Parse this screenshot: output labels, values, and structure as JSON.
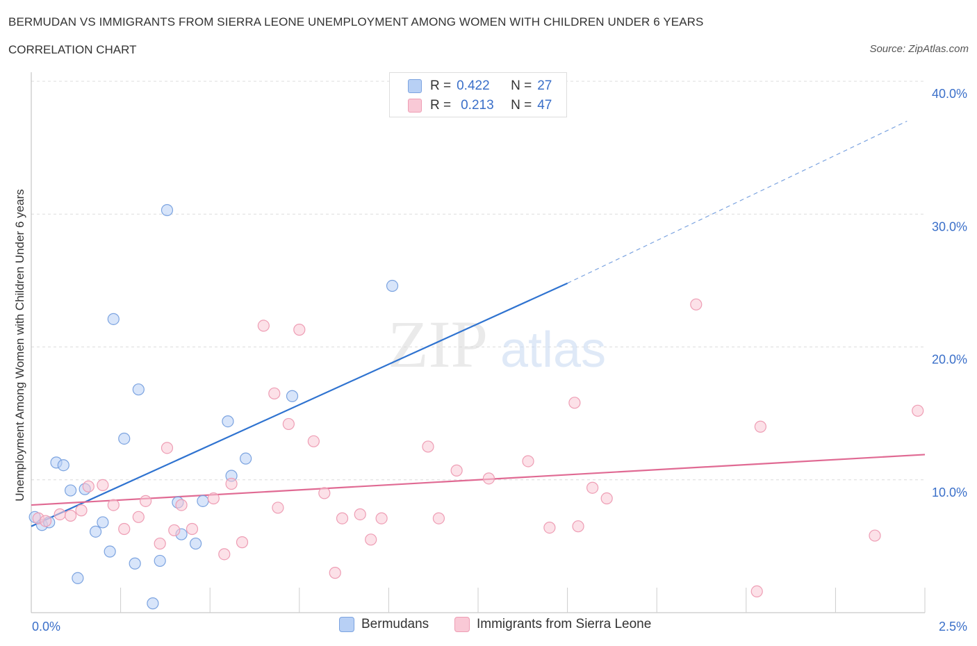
{
  "header": {
    "title": "BERMUDAN VS IMMIGRANTS FROM SIERRA LEONE UNEMPLOYMENT AMONG WOMEN WITH CHILDREN UNDER 6 YEARS",
    "subtitle": "CORRELATION CHART",
    "source": "Source: ZipAtlas.com"
  },
  "legend_top": {
    "rows": [
      {
        "r_label": "R =",
        "r_value": "0.422",
        "n_label": "N =",
        "n_value": "27",
        "color": "#b8d0f5",
        "stroke": "#7ba3e0"
      },
      {
        "r_label": "R =",
        "r_value": "0.213",
        "n_label": "N =",
        "n_value": "47",
        "color": "#f9c9d6",
        "stroke": "#ee9db4"
      }
    ]
  },
  "watermark": {
    "zip": "ZIP",
    "atlas": "atlas"
  },
  "chart_data": {
    "type": "scatter",
    "title": "BERMUDAN VS IMMIGRANTS FROM SIERRA LEONE UNEMPLOYMENT AMONG WOMEN WITH CHILDREN UNDER 6 YEARS",
    "ylabel": "Unemployment Among Women with Children Under 6 years",
    "xlabel": "",
    "xlim": [
      0.0,
      2.5
    ],
    "ylim": [
      0,
      40
    ],
    "x_tick_labels": [
      "0.0%",
      "2.5%"
    ],
    "y_tick_labels": [
      "10.0%",
      "20.0%",
      "30.0%",
      "40.0%"
    ],
    "y_ticks": [
      10,
      20,
      30,
      40
    ],
    "grid": true,
    "legend_position": "bottom",
    "series": [
      {
        "name": "Bermudans",
        "color": "#b8d0f5",
        "stroke": "#7ba3e0",
        "line_color": "#2f73d0",
        "trend": {
          "x0": 0.0,
          "y0": 6.5,
          "x1": 1.5,
          "y1": 24.8,
          "x_dash_end": 2.45,
          "y_dash_end": 37.0
        },
        "points": [
          [
            0.01,
            7.2
          ],
          [
            0.03,
            6.6
          ],
          [
            0.05,
            6.8
          ],
          [
            0.07,
            11.3
          ],
          [
            0.09,
            11.1
          ],
          [
            0.11,
            9.2
          ],
          [
            0.13,
            2.6
          ],
          [
            0.15,
            9.3
          ],
          [
            0.18,
            6.1
          ],
          [
            0.2,
            6.8
          ],
          [
            0.22,
            4.6
          ],
          [
            0.23,
            22.1
          ],
          [
            0.26,
            13.1
          ],
          [
            0.29,
            3.7
          ],
          [
            0.3,
            16.8
          ],
          [
            0.34,
            0.7
          ],
          [
            0.36,
            3.9
          ],
          [
            0.38,
            30.3
          ],
          [
            0.41,
            8.3
          ],
          [
            0.42,
            5.9
          ],
          [
            0.46,
            5.2
          ],
          [
            0.48,
            8.4
          ],
          [
            0.55,
            14.4
          ],
          [
            0.56,
            10.3
          ],
          [
            0.6,
            11.6
          ],
          [
            0.73,
            16.3
          ],
          [
            1.01,
            24.6
          ]
        ]
      },
      {
        "name": "Immigrants from Sierra Leone",
        "color": "#f9c9d6",
        "stroke": "#ee9db4",
        "line_color": "#e06a93",
        "trend": {
          "x0": 0.0,
          "y0": 8.1,
          "x1": 2.5,
          "y1": 11.9
        },
        "points": [
          [
            0.02,
            7.1
          ],
          [
            0.04,
            6.9
          ],
          [
            0.08,
            7.4
          ],
          [
            0.11,
            7.3
          ],
          [
            0.14,
            7.7
          ],
          [
            0.16,
            9.5
          ],
          [
            0.2,
            9.6
          ],
          [
            0.23,
            8.1
          ],
          [
            0.26,
            6.3
          ],
          [
            0.3,
            7.2
          ],
          [
            0.32,
            8.4
          ],
          [
            0.36,
            5.2
          ],
          [
            0.38,
            12.4
          ],
          [
            0.4,
            6.2
          ],
          [
            0.42,
            8.1
          ],
          [
            0.45,
            6.3
          ],
          [
            0.51,
            8.6
          ],
          [
            0.54,
            4.4
          ],
          [
            0.56,
            9.7
          ],
          [
            0.59,
            5.3
          ],
          [
            0.65,
            21.6
          ],
          [
            0.68,
            16.5
          ],
          [
            0.69,
            7.9
          ],
          [
            0.72,
            14.2
          ],
          [
            0.75,
            21.3
          ],
          [
            0.79,
            12.9
          ],
          [
            0.82,
            9.0
          ],
          [
            0.85,
            3.0
          ],
          [
            0.87,
            7.1
          ],
          [
            0.92,
            7.4
          ],
          [
            0.95,
            5.5
          ],
          [
            0.98,
            7.1
          ],
          [
            1.11,
            12.5
          ],
          [
            1.14,
            7.1
          ],
          [
            1.19,
            10.7
          ],
          [
            1.28,
            10.1
          ],
          [
            1.39,
            11.4
          ],
          [
            1.45,
            6.4
          ],
          [
            1.52,
            15.8
          ],
          [
            1.53,
            6.5
          ],
          [
            1.57,
            9.4
          ],
          [
            1.61,
            8.6
          ],
          [
            1.86,
            23.2
          ],
          [
            2.03,
            1.6
          ],
          [
            2.04,
            14.0
          ],
          [
            2.36,
            5.8
          ],
          [
            2.48,
            15.2
          ]
        ]
      }
    ]
  }
}
